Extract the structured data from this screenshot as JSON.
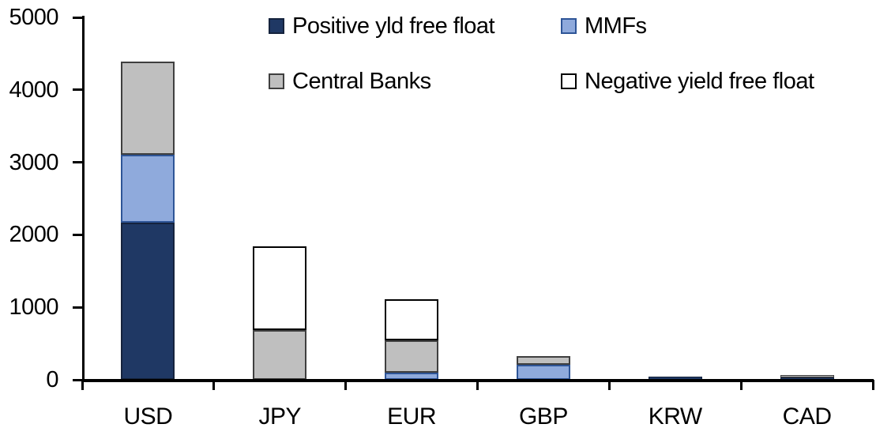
{
  "chart_data": {
    "type": "bar",
    "stacked": true,
    "title": "",
    "xlabel": "",
    "ylabel": "",
    "categories": [
      "USD",
      "JPY",
      "EUR",
      "GBP",
      "KRW",
      "CAD"
    ],
    "series": [
      {
        "name": "Positive yld free float",
        "color": "#1f3864",
        "border_color": "#15233d",
        "values": [
          2170,
          0,
          0,
          0,
          40,
          30
        ]
      },
      {
        "name": "MMFs",
        "color": "#8faadc",
        "border_color": "#2e5597",
        "values": [
          930,
          0,
          100,
          210,
          0,
          0
        ]
      },
      {
        "name": "Central Banks",
        "color": "#bfbfbf",
        "border_color": "#3f3f3f",
        "values": [
          1290,
          690,
          440,
          120,
          0,
          30
        ]
      },
      {
        "name": "Negative yield free float",
        "color": "#ffffff",
        "border_color": "#000000",
        "values": [
          0,
          1150,
          570,
          0,
          0,
          0
        ]
      }
    ],
    "totals": [
      4390,
      1840,
      1110,
      330,
      40,
      60
    ],
    "ylim": [
      0,
      5000
    ],
    "yticks": [
      0,
      1000,
      2000,
      3000,
      4000,
      5000
    ],
    "ytick_labels": [
      "0",
      "1000",
      "2000",
      "3000",
      "4000",
      "5000"
    ],
    "grid": false,
    "legend_position": "top",
    "legend_rows": 2,
    "legend_columns": 2,
    "axis_color": "#000000",
    "background_color": "#ffffff"
  }
}
